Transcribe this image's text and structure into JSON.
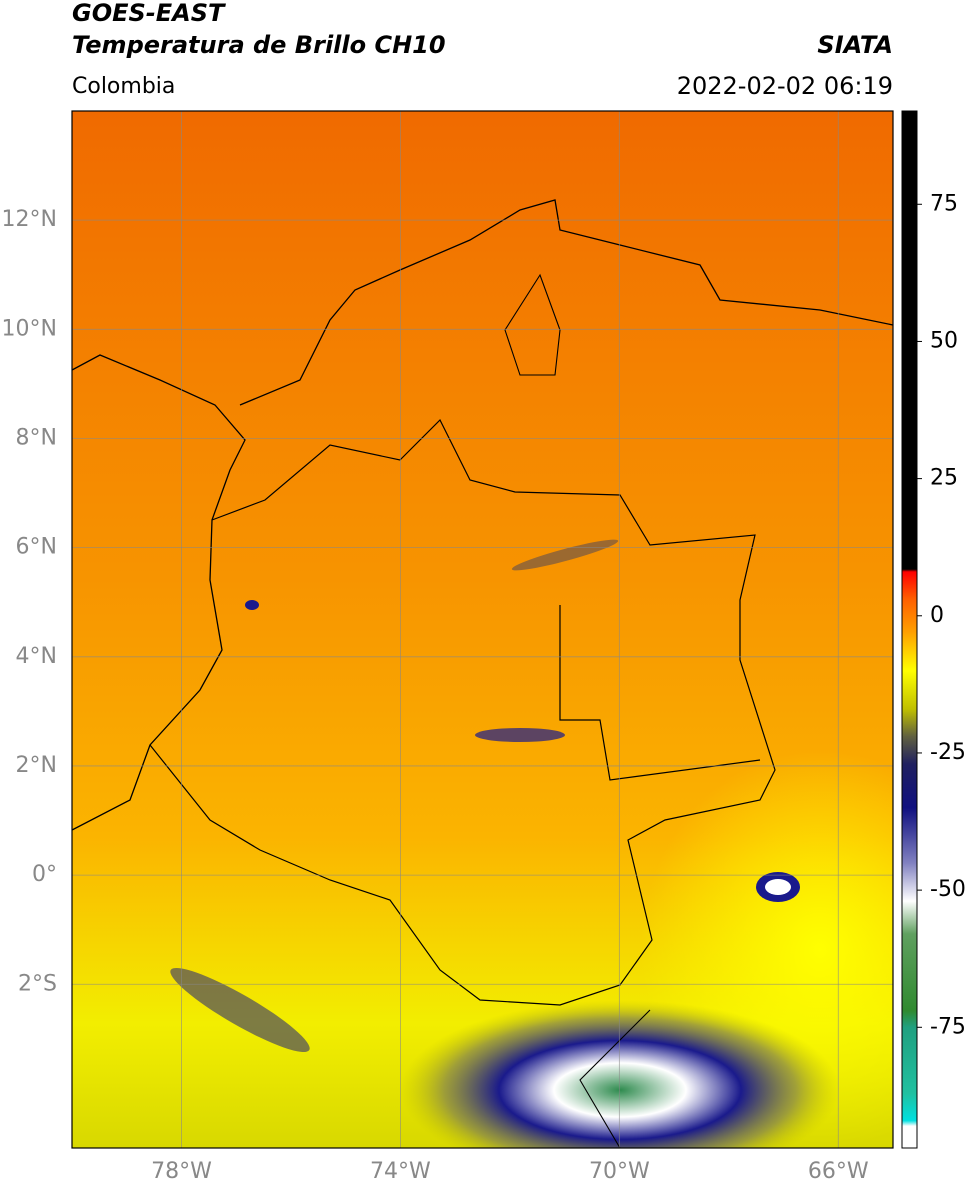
{
  "header": {
    "title": "GOES-EAST",
    "subtitle": "Temperatura de Brillo CH10",
    "source": "SIATA",
    "region": "Colombia",
    "datetime": "2022-02-02 06:19"
  },
  "map": {
    "xlim": [
      -80,
      -65
    ],
    "ylim": [
      -5,
      14
    ],
    "grid": true,
    "xticks": [
      {
        "value": -78,
        "label": "78°W"
      },
      {
        "value": -74,
        "label": "74°W"
      },
      {
        "value": -70,
        "label": "70°W"
      },
      {
        "value": -66,
        "label": "66°W"
      }
    ],
    "yticks": [
      {
        "value": 12,
        "label": "12°N"
      },
      {
        "value": 10,
        "label": "10°N"
      },
      {
        "value": 8,
        "label": "8°N"
      },
      {
        "value": 6,
        "label": "6°N"
      },
      {
        "value": 4,
        "label": "4°N"
      },
      {
        "value": 2,
        "label": "2°N"
      },
      {
        "value": 0,
        "label": "0°"
      },
      {
        "value": -2,
        "label": "2°S"
      }
    ]
  },
  "colorbar": {
    "lim": [
      -97,
      92
    ],
    "ticks": [
      75,
      50,
      25,
      0,
      -25,
      -50,
      -75
    ],
    "colormap": [
      {
        "value": -97,
        "color": "#ffffff"
      },
      {
        "value": -93,
        "color": "#ffffff"
      },
      {
        "value": -92,
        "color": "#00e0e0"
      },
      {
        "value": -87,
        "color": "#20c0a0"
      },
      {
        "value": -75,
        "color": "#20a080"
      },
      {
        "value": -72,
        "color": "#308a30"
      },
      {
        "value": -58,
        "color": "#60a060"
      },
      {
        "value": -52,
        "color": "#ffffff"
      },
      {
        "value": -45,
        "color": "#8080c0"
      },
      {
        "value": -35,
        "color": "#101080"
      },
      {
        "value": -27,
        "color": "#202060"
      },
      {
        "value": -22,
        "color": "#606040"
      },
      {
        "value": -17,
        "color": "#c0c000"
      },
      {
        "value": -10,
        "color": "#ffff00"
      },
      {
        "value": -3,
        "color": "#ffa000"
      },
      {
        "value": 3,
        "color": "#ff6000"
      },
      {
        "value": 8,
        "color": "#ff0000"
      },
      {
        "value": 8.5,
        "color": "#000000"
      },
      {
        "value": 92,
        "color": "#000000"
      }
    ]
  }
}
